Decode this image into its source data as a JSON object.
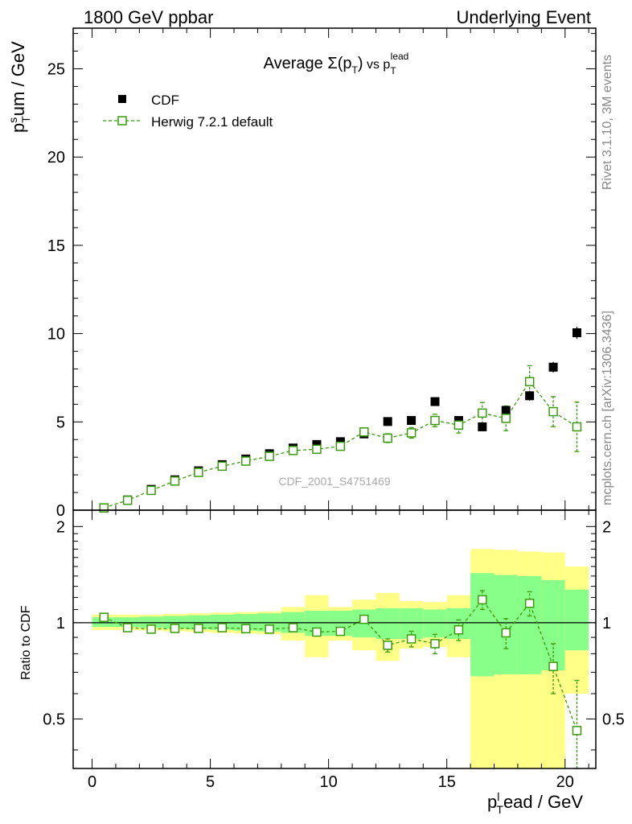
{
  "header": {
    "left": "1800 GeV ppbar",
    "right": "Underlying Event"
  },
  "side_labels": {
    "rivet": "Rivet 3.1.10,  3M events",
    "mcplots": "mcplots.cern.ch [arXiv:1306.3436]"
  },
  "watermark": "CDF_2001_S4751469",
  "colors": {
    "data": "#000000",
    "mc": "#3a9a0c",
    "band_outer": "#ffff88",
    "band_inner": "#88ff88"
  },
  "chart_data": [
    {
      "type": "scatter",
      "title": "Average Σ(pT) vs pTlead",
      "title_parts": {
        "prefix": "Average ",
        "sigma": "Σ(p",
        "sigma_sub": "T",
        "sigma_close": ")",
        "vs": " vs p",
        "sub": "T",
        "sup": "lead"
      },
      "ylabel_parts": {
        "p": "p",
        "sup": "s",
        "sub": "T",
        "rest": "um / GeV"
      },
      "xlim": [
        -0.8,
        21.3
      ],
      "ylim": [
        0,
        27.3
      ],
      "yticks": [
        0,
        5,
        10,
        15,
        20,
        25
      ],
      "yticklabels": [
        "0",
        "5",
        "10",
        "15",
        "20",
        "25"
      ],
      "legend": {
        "data_label": "CDF",
        "mc_label": "Herwig 7.2.1 default",
        "placement": "top-left"
      },
      "series": [
        {
          "name": "CDF",
          "x": [
            0.5,
            1.5,
            2.5,
            3.5,
            4.5,
            5.5,
            6.5,
            7.5,
            8.5,
            9.5,
            10.5,
            11.5,
            12.5,
            13.5,
            14.5,
            15.5,
            16.5,
            17.5,
            18.5,
            19.5,
            20.5
          ],
          "y": [
            0.12,
            0.58,
            1.18,
            1.72,
            2.23,
            2.58,
            2.9,
            3.2,
            3.52,
            3.72,
            3.88,
            4.32,
            5.02,
            5.08,
            6.15,
            5.08,
            4.72,
            5.65,
            6.48,
            8.1,
            10.05
          ],
          "yerr": [
            0.01,
            0.03,
            0.05,
            0.06,
            0.07,
            0.08,
            0.09,
            0.1,
            0.11,
            0.12,
            0.13,
            0.14,
            0.15,
            0.16,
            0.17,
            0.2,
            0.22,
            0.25,
            0.28,
            0.3,
            0.35
          ]
        },
        {
          "name": "Herwig 7.2.1 default",
          "x": [
            0.5,
            1.5,
            2.5,
            3.5,
            4.5,
            5.5,
            6.5,
            7.5,
            8.5,
            9.5,
            10.5,
            11.5,
            12.5,
            13.5,
            14.5,
            15.5,
            16.5,
            17.5,
            18.5,
            19.5,
            20.5
          ],
          "y": [
            0.13,
            0.56,
            1.12,
            1.65,
            2.14,
            2.49,
            2.78,
            3.05,
            3.38,
            3.45,
            3.62,
            4.43,
            4.08,
            4.38,
            5.08,
            4.82,
            5.5,
            5.2,
            7.28,
            5.58,
            4.72
          ],
          "yerr": [
            0.01,
            0.02,
            0.03,
            0.04,
            0.05,
            0.06,
            0.07,
            0.08,
            0.1,
            0.12,
            0.13,
            0.2,
            0.25,
            0.3,
            0.35,
            0.45,
            0.6,
            0.7,
            0.9,
            0.85,
            1.4
          ]
        }
      ]
    },
    {
      "type": "scatter",
      "ylabel": "Ratio to CDF",
      "xlabel_parts": {
        "p": "p",
        "sup": "l",
        "sub": "T",
        "rest": "ead / GeV"
      },
      "xlim": [
        -0.8,
        21.3
      ],
      "ylim": [
        0.35,
        2.25
      ],
      "xticks": [
        0,
        5,
        10,
        15,
        20
      ],
      "xticklabels": [
        "0",
        "5",
        "10",
        "15",
        "20"
      ],
      "yticks": [
        0.5,
        1,
        2
      ],
      "yticklabels": [
        "0.5",
        "1",
        "2"
      ],
      "bins": [
        [
          0,
          1
        ],
        [
          1,
          2
        ],
        [
          2,
          3
        ],
        [
          3,
          4
        ],
        [
          4,
          5
        ],
        [
          5,
          6
        ],
        [
          6,
          7
        ],
        [
          7,
          8
        ],
        [
          8,
          9
        ],
        [
          9,
          10
        ],
        [
          10,
          11
        ],
        [
          11,
          12
        ],
        [
          12,
          13
        ],
        [
          13,
          14
        ],
        [
          14,
          15
        ],
        [
          15,
          16
        ],
        [
          16,
          17
        ],
        [
          17,
          18
        ],
        [
          18,
          19
        ],
        [
          19,
          20
        ],
        [
          20,
          21
        ]
      ],
      "band_outer": [
        [
          0.95,
          1.06
        ],
        [
          0.95,
          1.06
        ],
        [
          0.945,
          1.06
        ],
        [
          0.94,
          1.065
        ],
        [
          0.935,
          1.07
        ],
        [
          0.93,
          1.075
        ],
        [
          0.925,
          1.08
        ],
        [
          0.92,
          1.085
        ],
        [
          0.88,
          1.12
        ],
        [
          0.78,
          1.22
        ],
        [
          0.88,
          1.12
        ],
        [
          0.82,
          1.18
        ],
        [
          0.76,
          1.24
        ],
        [
          0.83,
          1.17
        ],
        [
          0.84,
          1.16
        ],
        [
          0.78,
          1.22
        ],
        [
          0.3,
          1.7
        ],
        [
          0.3,
          1.69
        ],
        [
          0.3,
          1.67
        ],
        [
          0.3,
          1.66
        ],
        [
          0.6,
          1.5
        ]
      ],
      "band_inner": [
        [
          0.97,
          1.04
        ],
        [
          0.97,
          1.04
        ],
        [
          0.965,
          1.045
        ],
        [
          0.96,
          1.05
        ],
        [
          0.955,
          1.055
        ],
        [
          0.95,
          1.06
        ],
        [
          0.945,
          1.065
        ],
        [
          0.94,
          1.07
        ],
        [
          0.93,
          1.08
        ],
        [
          0.91,
          1.09
        ],
        [
          0.91,
          1.09
        ],
        [
          0.9,
          1.1
        ],
        [
          0.89,
          1.11
        ],
        [
          0.89,
          1.11
        ],
        [
          0.9,
          1.1
        ],
        [
          0.89,
          1.11
        ],
        [
          0.68,
          1.43
        ],
        [
          0.69,
          1.41
        ],
        [
          0.69,
          1.4
        ],
        [
          0.71,
          1.36
        ],
        [
          0.82,
          1.27
        ]
      ],
      "series": [
        {
          "name": "Herwig 7.2.1 default / CDF",
          "x": [
            0.5,
            1.5,
            2.5,
            3.5,
            4.5,
            5.5,
            6.5,
            7.5,
            8.5,
            9.5,
            10.5,
            11.5,
            12.5,
            13.5,
            14.5,
            15.5,
            16.5,
            17.5,
            18.5,
            19.5,
            20.5
          ],
          "y": [
            1.04,
            0.965,
            0.955,
            0.96,
            0.96,
            0.965,
            0.958,
            0.955,
            0.965,
            0.935,
            0.94,
            1.025,
            0.85,
            0.89,
            0.86,
            0.95,
            1.18,
            0.93,
            1.15,
            0.73,
            0.46
          ],
          "yerr": [
            0.01,
            0.01,
            0.01,
            0.01,
            0.01,
            0.01,
            0.01,
            0.01,
            0.01,
            0.015,
            0.015,
            0.02,
            0.04,
            0.05,
            0.06,
            0.07,
            0.08,
            0.1,
            0.1,
            0.13,
            0.2
          ]
        }
      ]
    }
  ]
}
